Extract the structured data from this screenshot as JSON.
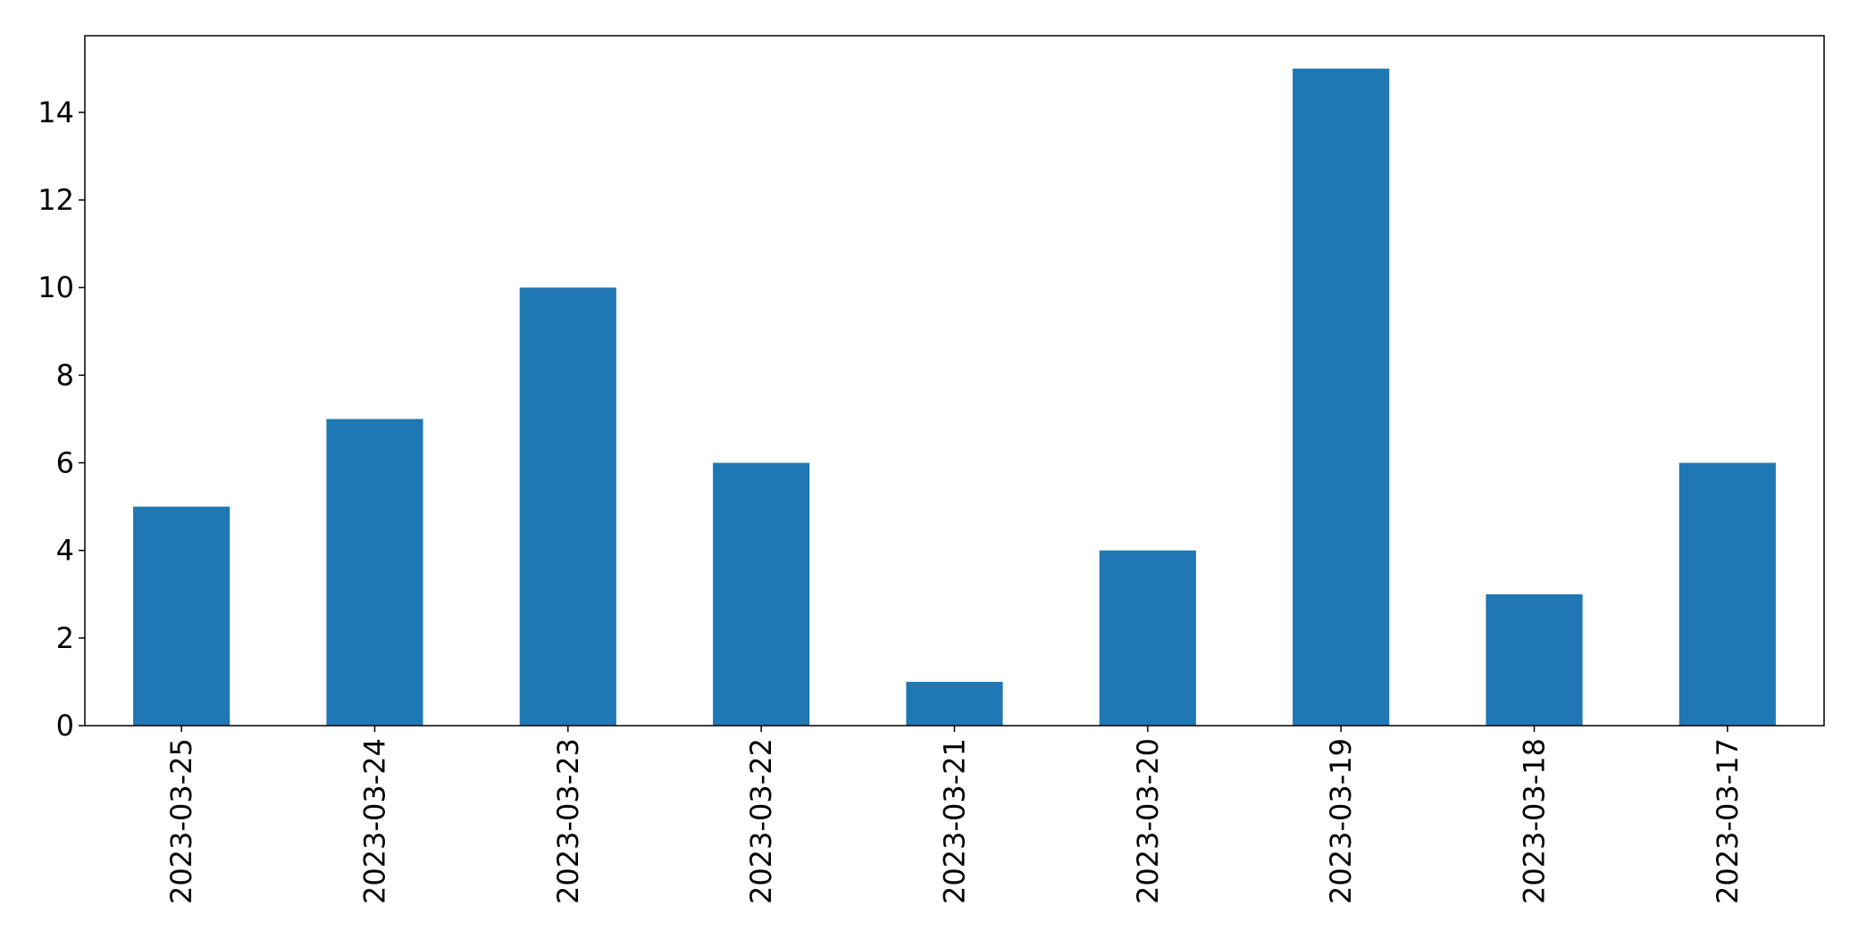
{
  "chart_data": {
    "type": "bar",
    "categories": [
      "2023-03-25",
      "2023-03-24",
      "2023-03-23",
      "2023-03-22",
      "2023-03-21",
      "2023-03-20",
      "2023-03-19",
      "2023-03-18",
      "2023-03-17"
    ],
    "values": [
      5,
      7,
      10,
      6,
      1,
      4,
      15,
      3,
      6
    ],
    "title": "",
    "xlabel": "",
    "ylabel": "",
    "ylim": [
      0,
      15.75
    ],
    "yticks": [
      0,
      2,
      4,
      6,
      8,
      10,
      12,
      14
    ],
    "grid": false,
    "legend": "none",
    "bar_color": "#1f77b4",
    "x_tick_rotation": "vertical"
  }
}
